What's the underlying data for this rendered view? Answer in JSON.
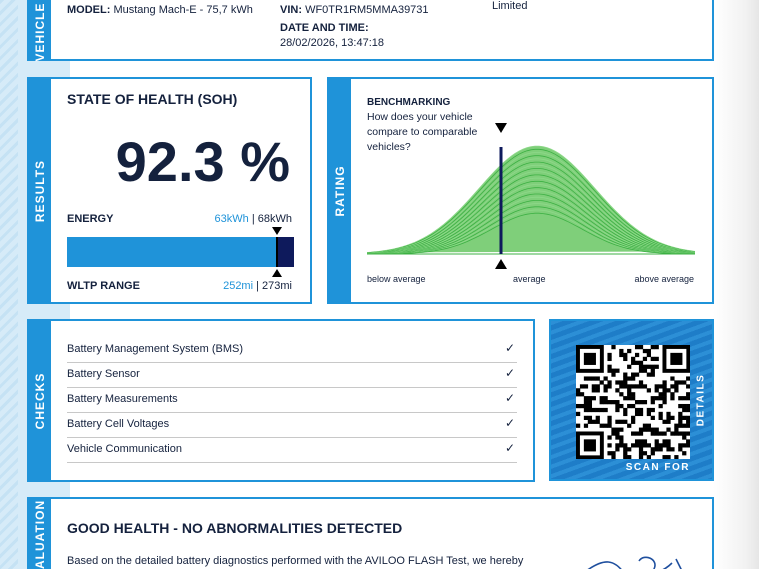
{
  "vehicle": {
    "side_label": "VEHICLE",
    "model_label": "MODEL:",
    "model_value": "Mustang Mach-E - 75,7 kWh",
    "vin_label": "VIN:",
    "vin_value": "WF0TR1RM5MMA39731",
    "datetime_label": "DATE AND TIME:",
    "datetime_value": "28/02/2026, 13:47:18",
    "owner_value": "Limited"
  },
  "results": {
    "side_label": "RESULTS",
    "title": "STATE OF HEALTH (SOH)",
    "soh_value": "92.3 %",
    "energy_label": "ENERGY",
    "energy_current": "63kWh",
    "energy_sep": " | ",
    "energy_total": "68kWh",
    "range_label": "WLTP RANGE",
    "range_current": "252mi",
    "range_sep": " | ",
    "range_total": "273mi",
    "bar_fraction": 0.923
  },
  "rating": {
    "side_label": "RATING",
    "title": "BENCHMARKING",
    "question": [
      "How does your vehicle",
      "compare to comparable",
      "vehicles?"
    ],
    "below_label": "below average",
    "avg_label": "average",
    "above_label": "above average"
  },
  "checks": {
    "side_label": "CHECKS",
    "items": [
      "Battery Management System (BMS)",
      "Battery Sensor",
      "Battery Measurements",
      "Battery Cell Voltages",
      "Vehicle Communication"
    ],
    "check_icon": "✓"
  },
  "qr": {
    "scan_label": "SCAN FOR",
    "details_label": "DETAILS"
  },
  "evaluation": {
    "side_label": "EVALUATION",
    "title": "GOOD HEALTH - NO ABNORMALITIES DETECTED",
    "body": "Based on the detailed battery diagnostics performed with the AVILOO FLASH Test, we hereby"
  },
  "colors": {
    "accent": "#1f93d9",
    "navy": "#14213d",
    "bar_blue": "#1f93d9",
    "bar_dark": "#0e1a5c",
    "curve_green": "#3cb043"
  }
}
